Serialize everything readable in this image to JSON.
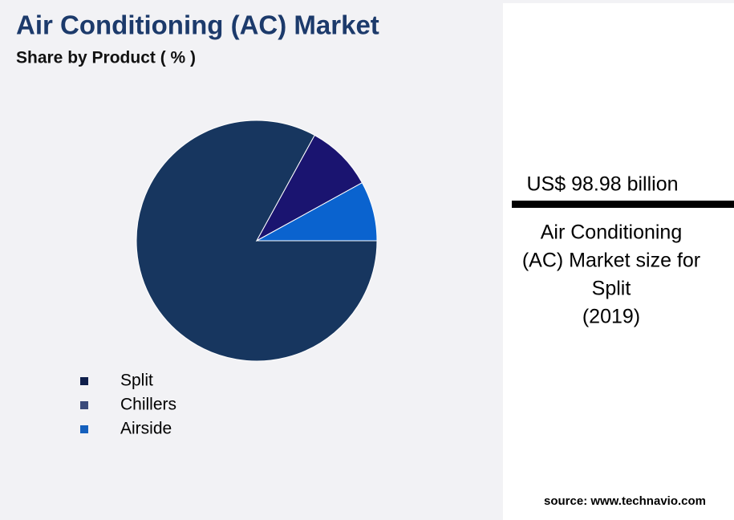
{
  "chart_data": {
    "type": "pie",
    "title": "Air Conditioning (AC) Market",
    "subtitle": "Share by Product ( % )",
    "categories": [
      "Split",
      "Chillers",
      "Airside"
    ],
    "values": [
      83,
      9,
      8
    ],
    "colors": [
      "#17365f",
      "#1a1470",
      "#0a63cf"
    ],
    "legend_colors": [
      "#0f1f4b",
      "#3a4a7a",
      "#1560bd"
    ],
    "legend": "bottom-left"
  },
  "highlight": {
    "value_text": "US$ 98.98 billion",
    "caption_lines": [
      "Air Conditioning",
      "(AC) Market size for",
      "Split",
      "(2019)"
    ]
  },
  "source": "source: www.technavio.com"
}
